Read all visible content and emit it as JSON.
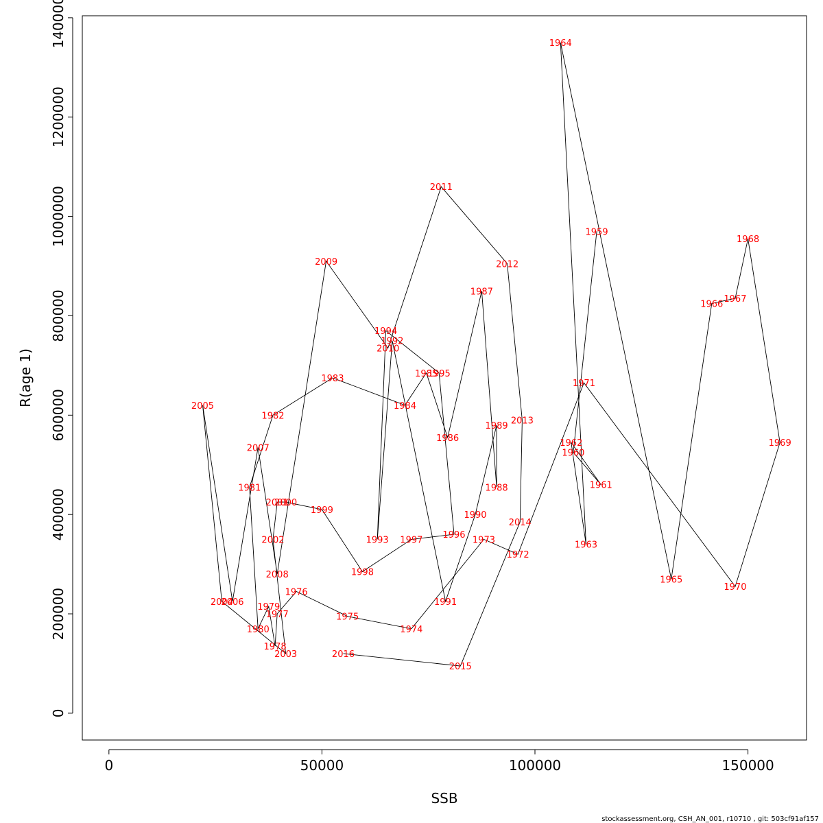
{
  "chart_data": {
    "type": "line",
    "xlabel": "SSB",
    "ylabel": "R(age 1)",
    "xlim": [
      -6250,
      163750
    ],
    "ylim": [
      -54000,
      1404000
    ],
    "x_ticks": [
      0,
      50000,
      100000,
      150000
    ],
    "y_ticks": [
      0,
      200000,
      400000,
      600000,
      800000,
      1000000,
      1200000,
      1400000
    ],
    "grid": false,
    "legend": "none",
    "line_color": "#000000",
    "label_color": "#ff0000",
    "footer": "stockassessment.org, CSH_AN_001, r10710 , git: 503cf91af157",
    "points": [
      {
        "year": "1959",
        "x": 114500,
        "y": 970000
      },
      {
        "year": "1960",
        "x": 109000,
        "y": 525000
      },
      {
        "year": "1961",
        "x": 115500,
        "y": 460000
      },
      {
        "year": "1962",
        "x": 108500,
        "y": 545000
      },
      {
        "year": "1963",
        "x": 112000,
        "y": 340000
      },
      {
        "year": "1964",
        "x": 106000,
        "y": 1350000
      },
      {
        "year": "1965",
        "x": 132000,
        "y": 270000
      },
      {
        "year": "1966",
        "x": 141500,
        "y": 825000
      },
      {
        "year": "1967",
        "x": 147000,
        "y": 835000
      },
      {
        "year": "1968",
        "x": 150000,
        "y": 955000
      },
      {
        "year": "1969",
        "x": 157500,
        "y": 545000
      },
      {
        "year": "1970",
        "x": 147000,
        "y": 255000
      },
      {
        "year": "1971",
        "x": 111500,
        "y": 665000
      },
      {
        "year": "1972",
        "x": 96000,
        "y": 320000
      },
      {
        "year": "1973",
        "x": 88000,
        "y": 350000
      },
      {
        "year": "1974",
        "x": 71000,
        "y": 170000
      },
      {
        "year": "1975",
        "x": 56000,
        "y": 195000
      },
      {
        "year": "1976",
        "x": 44000,
        "y": 245000
      },
      {
        "year": "1977",
        "x": 39500,
        "y": 200000
      },
      {
        "year": "1978",
        "x": 39000,
        "y": 135000
      },
      {
        "year": "1979",
        "x": 37500,
        "y": 215000
      },
      {
        "year": "1980",
        "x": 35000,
        "y": 170000
      },
      {
        "year": "1981",
        "x": 33000,
        "y": 455000
      },
      {
        "year": "1982",
        "x": 38500,
        "y": 600000
      },
      {
        "year": "1983",
        "x": 52500,
        "y": 675000
      },
      {
        "year": "1984",
        "x": 69500,
        "y": 620000
      },
      {
        "year": "1985",
        "x": 74500,
        "y": 685000
      },
      {
        "year": "1986",
        "x": 79500,
        "y": 555000
      },
      {
        "year": "1987",
        "x": 87500,
        "y": 850000
      },
      {
        "year": "1988",
        "x": 91000,
        "y": 455000
      },
      {
        "year": "1989",
        "x": 91000,
        "y": 580000
      },
      {
        "year": "1990",
        "x": 86000,
        "y": 400000
      },
      {
        "year": "1991",
        "x": 79000,
        "y": 225000
      },
      {
        "year": "1992",
        "x": 66500,
        "y": 750000
      },
      {
        "year": "1993",
        "x": 63000,
        "y": 350000
      },
      {
        "year": "1994",
        "x": 65000,
        "y": 770000
      },
      {
        "year": "1995",
        "x": 77500,
        "y": 685000
      },
      {
        "year": "1996",
        "x": 81000,
        "y": 360000
      },
      {
        "year": "1997",
        "x": 71000,
        "y": 350000
      },
      {
        "year": "1998",
        "x": 59500,
        "y": 285000
      },
      {
        "year": "1999",
        "x": 50000,
        "y": 410000
      },
      {
        "year": "2000",
        "x": 41500,
        "y": 425000
      },
      {
        "year": "2001",
        "x": 39500,
        "y": 425000
      },
      {
        "year": "2002",
        "x": 38500,
        "y": 350000
      },
      {
        "year": "2003",
        "x": 41500,
        "y": 120000
      },
      {
        "year": "2004",
        "x": 26500,
        "y": 225000
      },
      {
        "year": "2005",
        "x": 22000,
        "y": 620000
      },
      {
        "year": "2006",
        "x": 29000,
        "y": 225000
      },
      {
        "year": "2007",
        "x": 35000,
        "y": 535000
      },
      {
        "year": "2008",
        "x": 39500,
        "y": 280000
      },
      {
        "year": "2009",
        "x": 51000,
        "y": 910000
      },
      {
        "year": "2010",
        "x": 65500,
        "y": 735000
      },
      {
        "year": "2011",
        "x": 78000,
        "y": 1060000
      },
      {
        "year": "2012",
        "x": 93500,
        "y": 905000
      },
      {
        "year": "2013",
        "x": 97000,
        "y": 590000
      },
      {
        "year": "2014",
        "x": 96500,
        "y": 385000
      },
      {
        "year": "2015",
        "x": 82500,
        "y": 95000
      },
      {
        "year": "2016",
        "x": 55000,
        "y": 120000
      }
    ]
  }
}
